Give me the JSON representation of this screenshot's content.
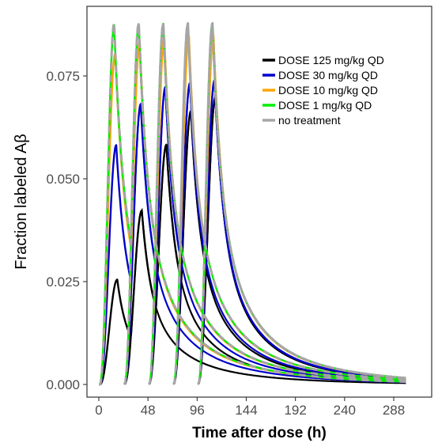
{
  "chart_data": {
    "type": "line",
    "title": "",
    "xlabel": "Time after dose (h)",
    "ylabel": "Fraction labeled Aβ",
    "xlim": [
      0,
      300
    ],
    "ylim": [
      0,
      0.092
    ],
    "xticks": [
      0,
      48,
      96,
      144,
      192,
      240,
      288
    ],
    "yticks": [
      0.0,
      0.025,
      0.05,
      0.075
    ],
    "ytick_labels": [
      "0.000",
      "0.025",
      "0.050",
      "0.075"
    ],
    "grid": false,
    "legend_position": "top-right",
    "labeling_starts_h": [
      1,
      25,
      49,
      73,
      97
    ],
    "labeling_duration_h": 14,
    "series": [
      {
        "name": "DOSE 125 mg/kg QD",
        "color": "#000000",
        "dashed": false,
        "peaks": [
          {
            "x": 18,
            "y": 0.0255
          },
          {
            "x": 42,
            "y": 0.0423
          },
          {
            "x": 66,
            "y": 0.0583
          },
          {
            "x": 90,
            "y": 0.0665
          },
          {
            "x": 114,
            "y": 0.07
          }
        ]
      },
      {
        "name": "DOSE 30 mg/kg QD",
        "color": "#0000cc",
        "dashed": false,
        "peaks": [
          {
            "x": 17,
            "y": 0.0582
          },
          {
            "x": 41,
            "y": 0.0682
          },
          {
            "x": 65,
            "y": 0.0723
          },
          {
            "x": 89,
            "y": 0.0733
          },
          {
            "x": 113,
            "y": 0.074
          }
        ]
      },
      {
        "name": "DOSE 10 mg/kg QD",
        "color": "#ffa500",
        "dashed": false,
        "peaks": [
          {
            "x": 16,
            "y": 0.0805
          },
          {
            "x": 40,
            "y": 0.0835
          },
          {
            "x": 64,
            "y": 0.0843
          },
          {
            "x": 88,
            "y": 0.0846
          },
          {
            "x": 112,
            "y": 0.0847
          }
        ]
      },
      {
        "name": "DOSE 1 mg/kg QD",
        "color": "#00ee00",
        "dashed": false,
        "peaks": [
          {
            "x": 15,
            "y": 0.0874
          },
          {
            "x": 39,
            "y": 0.0876
          },
          {
            "x": 63,
            "y": 0.0877
          },
          {
            "x": 87,
            "y": 0.0877
          },
          {
            "x": 111,
            "y": 0.0877
          }
        ]
      },
      {
        "name": "no treatment",
        "color": "#a6a6a6",
        "dashed": true,
        "peaks": [
          {
            "x": 15,
            "y": 0.0878
          },
          {
            "x": 39,
            "y": 0.0878
          },
          {
            "x": 63,
            "y": 0.0878
          },
          {
            "x": 87,
            "y": 0.0878
          },
          {
            "x": 111,
            "y": 0.0878
          }
        ]
      }
    ]
  }
}
